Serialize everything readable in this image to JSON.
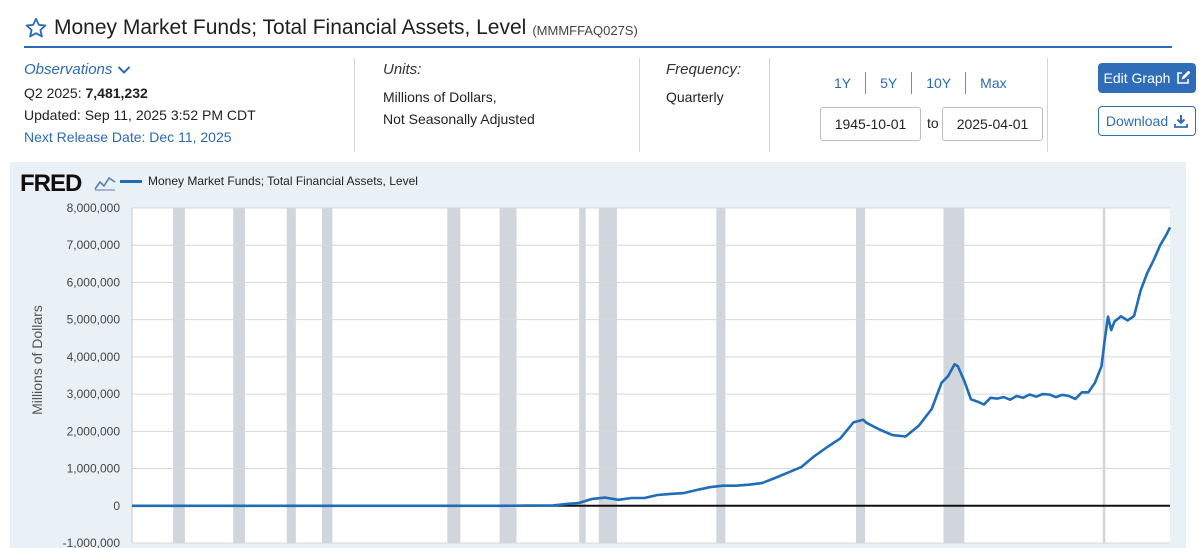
{
  "header": {
    "title": "Money Market Funds; Total Financial Assets, Level",
    "series_id": "(MMMFFAQ027S)"
  },
  "observations": {
    "label": "Observations",
    "latest_period": "Q2 2025:",
    "latest_value": "7,481,232",
    "updated": "Updated: Sep 11, 2025 3:52 PM CDT",
    "next_release": "Next Release Date: Dec 11, 2025"
  },
  "units": {
    "label": "Units:",
    "line1": "Millions of Dollars,",
    "line2": "Not Seasonally Adjusted"
  },
  "frequency": {
    "label": "Frequency:",
    "value": "Quarterly"
  },
  "range": {
    "buttons": [
      "1Y",
      "5Y",
      "10Y",
      "Max"
    ],
    "start": "1945-10-01",
    "to_label": "to",
    "end": "2025-04-01"
  },
  "actions": {
    "edit_label": "Edit Graph",
    "download_label": "Download"
  },
  "graph": {
    "logo": "FRED",
    "legend": "Money Market Funds; Total Financial Assets, Level",
    "y_title": "Millions of Dollars"
  },
  "colors": {
    "accent": "#2a6ab8",
    "series": "#1f6db8",
    "recession": "#d0d6dc",
    "plot_bg": "#ffffff",
    "graph_bg": "#e9f0f6"
  },
  "chart_data": {
    "type": "line",
    "ylabel": "Millions of Dollars",
    "ylim": [
      -1000000,
      8000000
    ],
    "xlim": [
      1945.75,
      2025.25
    ],
    "grid": true,
    "y_ticks": [
      "8,000,000",
      "7,000,000",
      "6,000,000",
      "5,000,000",
      "4,000,000",
      "3,000,000",
      "2,000,000",
      "1,000,000",
      "0",
      "-1,000,000"
    ],
    "y_tick_values": [
      8000000,
      7000000,
      6000000,
      5000000,
      4000000,
      3000000,
      2000000,
      1000000,
      0,
      -1000000
    ],
    "recessions": [
      [
        1948.9,
        1949.8
      ],
      [
        1953.5,
        1954.4
      ],
      [
        1957.6,
        1958.3
      ],
      [
        1960.3,
        1961.1
      ],
      [
        1969.9,
        1970.9
      ],
      [
        1973.9,
        1975.2
      ],
      [
        1980.0,
        1980.5
      ],
      [
        1981.5,
        1982.9
      ],
      [
        1990.5,
        1991.2
      ],
      [
        2001.2,
        2001.9
      ],
      [
        2007.9,
        2009.5
      ],
      [
        2020.1,
        2020.3
      ]
    ],
    "series": [
      {
        "name": "Money Market Funds; Total Financial Assets, Level",
        "x": [
          1945.75,
          1946.5,
          1950,
          1960,
          1970,
          1974,
          1976,
          1978,
          1979,
          1980,
          1981,
          1982,
          1983,
          1984,
          1985,
          1986,
          1987,
          1988,
          1989,
          1990,
          1991,
          1992,
          1993,
          1994,
          1995,
          1996,
          1997,
          1998,
          1999,
          2000,
          2001,
          2001.75,
          2002,
          2003,
          2004,
          2005,
          2006,
          2007,
          2007.75,
          2008.25,
          2008.75,
          2009,
          2009.5,
          2010,
          2010.5,
          2011,
          2011.5,
          2012,
          2012.5,
          2013,
          2013.5,
          2014,
          2014.5,
          2015,
          2015.5,
          2016,
          2016.5,
          2017,
          2017.5,
          2018,
          2018.5,
          2019,
          2019.5,
          2020,
          2020.25,
          2020.5,
          2020.75,
          2021,
          2021.5,
          2022,
          2022.5,
          2023,
          2023.5,
          2024,
          2024.5,
          2025,
          2025.25
        ],
        "y": [
          0,
          0,
          0,
          0,
          0,
          0,
          4000,
          11000,
          45000,
          76000,
          186000,
          220000,
          160000,
          210000,
          210000,
          290000,
          320000,
          340000,
          425000,
          500000,
          540000,
          540000,
          565000,
          610000,
          745000,
          890000,
          1040000,
          1330000,
          1580000,
          1810000,
          2240000,
          2310000,
          2230000,
          2050000,
          1900000,
          1860000,
          2150000,
          2600000,
          3300000,
          3480000,
          3800000,
          3750000,
          3350000,
          2860000,
          2800000,
          2720000,
          2900000,
          2880000,
          2920000,
          2850000,
          2950000,
          2900000,
          2990000,
          2930000,
          3000000,
          2990000,
          2920000,
          2980000,
          2950000,
          2870000,
          3050000,
          3050000,
          3300000,
          3750000,
          4450000,
          5080000,
          4720000,
          4950000,
          5090000,
          4980000,
          5100000,
          5780000,
          6250000,
          6600000,
          7000000,
          7300000,
          7481232
        ]
      }
    ],
    "x_ticks": []
  }
}
